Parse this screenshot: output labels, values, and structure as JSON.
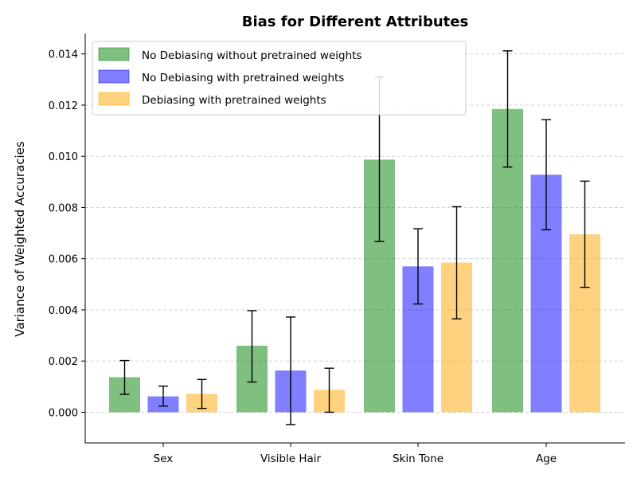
{
  "chart_data": {
    "type": "bar",
    "title": "Bias for Different Attributes",
    "xlabel": "",
    "ylabel": "Variance of Weighted Accuracies",
    "categories": [
      "Sex",
      "Visible Hair",
      "Skin Tone",
      "Age"
    ],
    "ylim": [
      -0.0012,
      0.0148
    ],
    "yticks": [
      0.0,
      0.002,
      0.004,
      0.006,
      0.008,
      0.01,
      0.012,
      0.014
    ],
    "ytick_labels": [
      "0.000",
      "0.002",
      "0.004",
      "0.006",
      "0.008",
      "0.010",
      "0.012",
      "0.014"
    ],
    "grid": true,
    "legend_position": "top-left",
    "series": [
      {
        "name": "No Debiasing without pretrained weights",
        "color": "#008000",
        "values": [
          0.00137,
          0.0026,
          0.00987,
          0.01185
        ],
        "err_low": [
          0.0007,
          0.00118,
          0.00667,
          0.00958
        ],
        "err_high": [
          0.00202,
          0.00397,
          0.0131,
          0.01412
        ]
      },
      {
        "name": "No Debiasing with pretrained weights",
        "color": "#0000ff",
        "values": [
          0.00062,
          0.00163,
          0.0057,
          0.00928
        ],
        "err_low": [
          0.00024,
          -0.00048,
          0.00423,
          0.00713
        ],
        "err_high": [
          0.00102,
          0.00372,
          0.00717,
          0.01143
        ]
      },
      {
        "name": "Debiasing with pretrained weights",
        "color": "#ffa500",
        "values": [
          0.00072,
          0.00088,
          0.00585,
          0.00695
        ],
        "err_low": [
          0.00015,
          0.0,
          0.00365,
          0.00488
        ],
        "err_high": [
          0.00128,
          0.00172,
          0.00803,
          0.00903
        ]
      }
    ]
  }
}
